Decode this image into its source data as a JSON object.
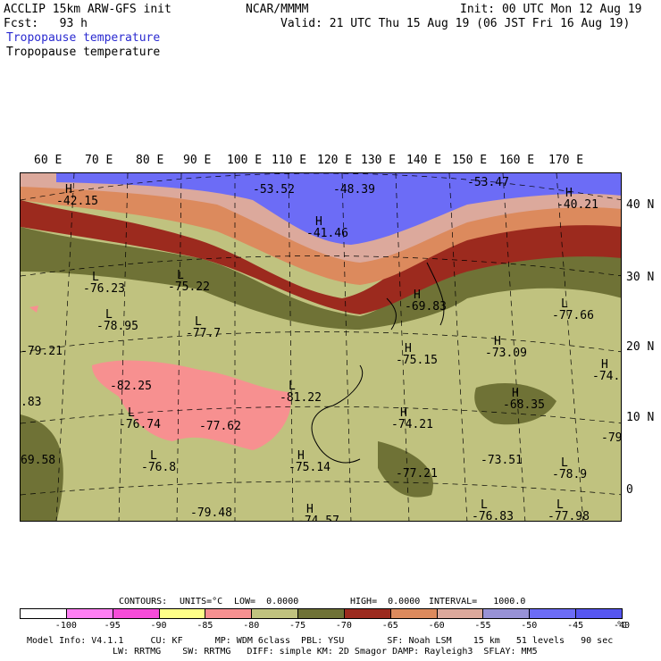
{
  "header": {
    "title_left": "ACCLIP 15km ARW-GFS init",
    "org": "NCAR/MMMM",
    "init": "Init: 00 UTC Mon 12 Aug 19",
    "fcst": "Fcst:   93 h",
    "valid": "Valid: 21 UTC Thu 15 Aug 19 (06 JST Fri 16 Aug 19)",
    "field_title_1": "Tropopause temperature",
    "field_title_2": "Tropopause temperature"
  },
  "map": {
    "longitude_labels": [
      "60 E",
      "70 E",
      "80 E",
      "90 E",
      "100 E",
      "110 E",
      "120 E",
      "130 E",
      "140 E",
      "150 E",
      "160 E",
      "170 E"
    ],
    "latitude_labels": [
      "40 N",
      "30 N",
      "20 N",
      "10 N",
      "0"
    ],
    "annotations": [
      {
        "type": "H",
        "value": "-42.15"
      },
      {
        "type": "",
        "value": "-53.52"
      },
      {
        "type": "",
        "value": "-48.39"
      },
      {
        "type": "H",
        "value": "-41.46"
      },
      {
        "type": "",
        "value": "-53.47"
      },
      {
        "type": "H",
        "value": "-40.21"
      },
      {
        "type": "L",
        "value": "-76.23"
      },
      {
        "type": "L",
        "value": "-75.22"
      },
      {
        "type": "L",
        "value": "-78.95"
      },
      {
        "type": "L",
        "value": "-77.7"
      },
      {
        "type": "H",
        "value": "-69.83"
      },
      {
        "type": "L",
        "value": "-77.66"
      },
      {
        "type": "",
        "value": "-79.21"
      },
      {
        "type": "H",
        "value": "-75.15"
      },
      {
        "type": "H",
        "value": "-73.09"
      },
      {
        "type": "H",
        "value": "-74."
      },
      {
        "type": "",
        "value": "-82.25"
      },
      {
        "type": "L",
        "value": "-81.22"
      },
      {
        "type": "H",
        "value": "-68.35"
      },
      {
        "type": "",
        "value": ".83"
      },
      {
        "type": "L",
        "value": "-76.74"
      },
      {
        "type": "",
        "value": "-77.62"
      },
      {
        "type": "H",
        "value": "-74.21"
      },
      {
        "type": "",
        "value": "-79."
      },
      {
        "type": "",
        "value": "69.58"
      },
      {
        "type": "H",
        "value": "-75.14"
      },
      {
        "type": "L",
        "value": "-76.8"
      },
      {
        "type": "",
        "value": "-77.21"
      },
      {
        "type": "",
        "value": "-73.51"
      },
      {
        "type": "L",
        "value": "-78.9"
      },
      {
        "type": "L",
        "value": "-76.83"
      },
      {
        "type": "H",
        "value": "-74.57"
      },
      {
        "type": "",
        "value": "-79.48"
      },
      {
        "type": "L",
        "value": "-77.98"
      }
    ]
  },
  "contour_info": {
    "contours_label": "CONTOURS:",
    "units": "UNITS=°C",
    "low": "LOW=  0.0000",
    "high": "HIGH=  0.0000",
    "interval": "INTERVAL=   1000.0"
  },
  "colorbar": {
    "colors": [
      "#ffffff",
      "#ff7ff4",
      "#f74cd9",
      "#ffff88",
      "#f79090",
      "#c0c27f",
      "#6f7236",
      "#9c2a1e",
      "#dc8a5d",
      "#dca99c",
      "#9892d6",
      "#6c6cf6",
      "#5656f0"
    ],
    "labels": [
      "-100",
      "-95",
      "-90",
      "-85",
      "-80",
      "-75",
      "-70",
      "-65",
      "-60",
      "-55",
      "-50",
      "-45",
      "-40"
    ],
    "unit_label": "°C"
  },
  "model_info": {
    "line1": "Model Info: V4.1.1     CU: KF      MP: WDM 6class  PBL: YSU        SF: Noah LSM    15 km   51 levels   90 sec",
    "line2": "LW: RRTMG    SW: RRTMG   DIFF: simple KM: 2D Smagor DAMP: Rayleigh3  SFLAY: MM5"
  }
}
